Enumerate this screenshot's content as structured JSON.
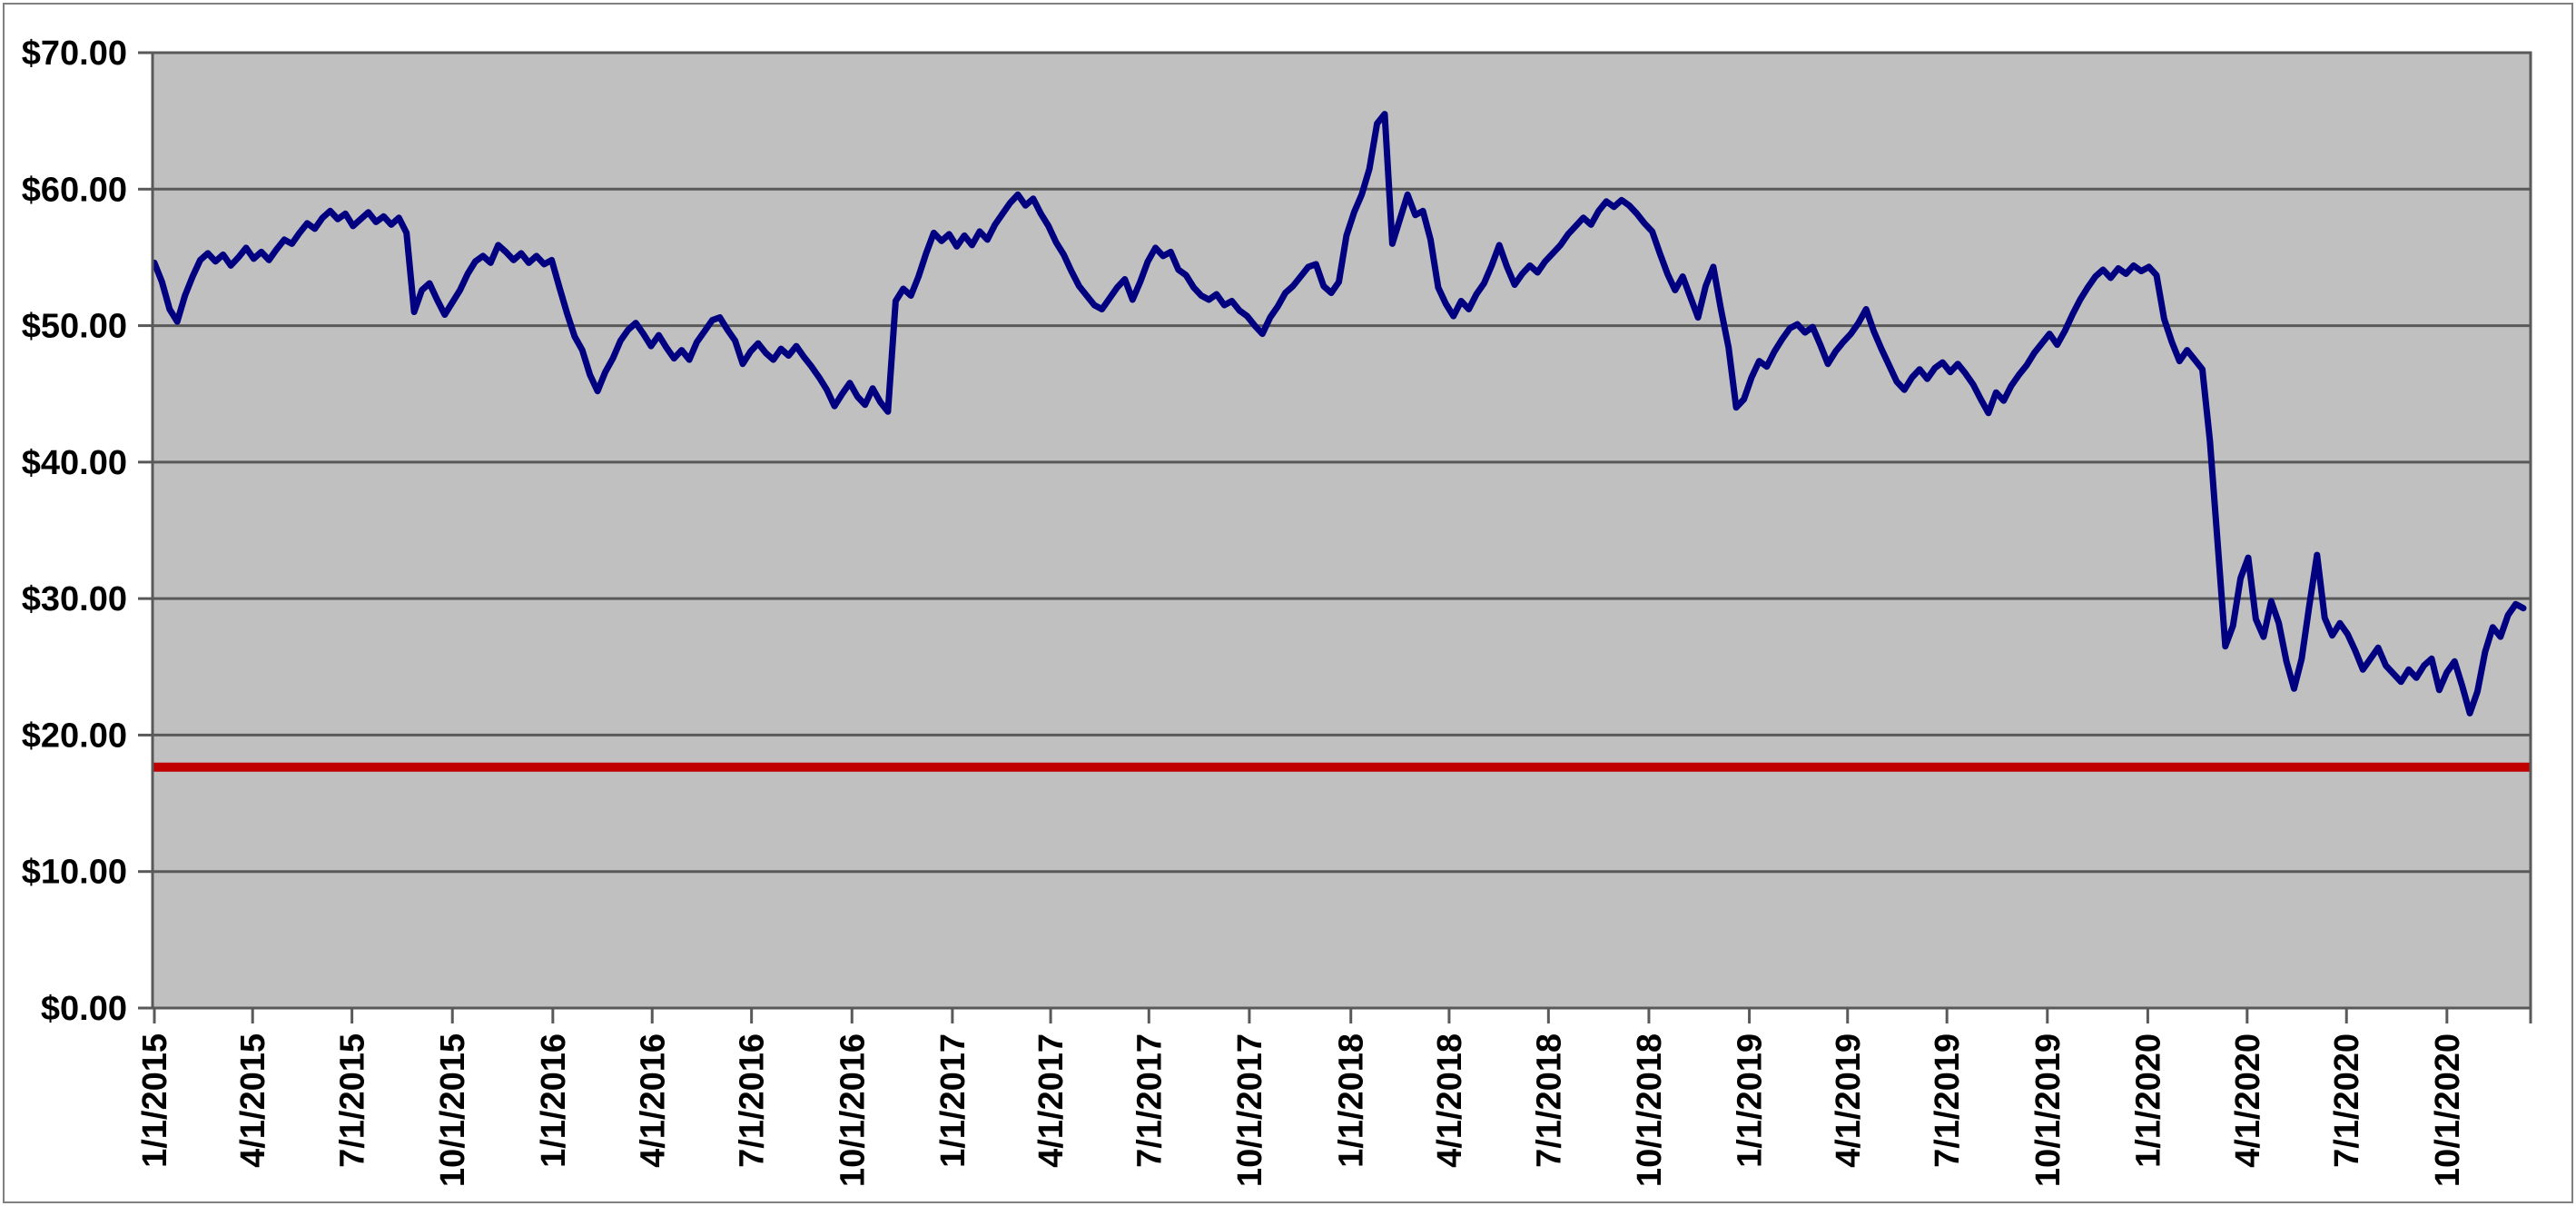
{
  "chart_data": {
    "type": "line",
    "title": "",
    "legend": "none",
    "grid": "horizontal",
    "colors": {
      "plot_background": "#C0C0C0",
      "chart_background": "#FFFFFF",
      "gridline": "#595959",
      "plot_border": "#595959",
      "chart_border": "#808080",
      "price_line": "#000080",
      "reference_line": "#C00000"
    },
    "y_axis": {
      "min": 0,
      "max": 70,
      "step": 10,
      "ticks": [
        {
          "label": "$70.00",
          "value": 70
        },
        {
          "label": "$60.00",
          "value": 60
        },
        {
          "label": "$50.00",
          "value": 50
        },
        {
          "label": "$40.00",
          "value": 40
        },
        {
          "label": "$30.00",
          "value": 30
        },
        {
          "label": "$20.00",
          "value": 20
        },
        {
          "label": "$10.00",
          "value": 10
        },
        {
          "label": "$0.00",
          "value": 0
        }
      ]
    },
    "x_axis": {
      "start_date": "1/1/2015",
      "total_days": 2170,
      "ticks": [
        {
          "label": "1/1/2015",
          "day": 0
        },
        {
          "label": "4/1/2015",
          "day": 90
        },
        {
          "label": "7/1/2015",
          "day": 181
        },
        {
          "label": "10/1/2015",
          "day": 273
        },
        {
          "label": "1/1/2016",
          "day": 365
        },
        {
          "label": "4/1/2016",
          "day": 456
        },
        {
          "label": "7/1/2016",
          "day": 547
        },
        {
          "label": "10/1/2016",
          "day": 639
        },
        {
          "label": "1/1/2017",
          "day": 731
        },
        {
          "label": "4/1/2017",
          "day": 821
        },
        {
          "label": "7/1/2017",
          "day": 911
        },
        {
          "label": "10/1/2017",
          "day": 1003
        },
        {
          "label": "1/1/2018",
          "day": 1096
        },
        {
          "label": "4/1/2018",
          "day": 1186
        },
        {
          "label": "7/1/2018",
          "day": 1277
        },
        {
          "label": "10/1/2018",
          "day": 1369
        },
        {
          "label": "1/1/2019",
          "day": 1461
        },
        {
          "label": "4/1/2019",
          "day": 1551
        },
        {
          "label": "7/1/2019",
          "day": 1642
        },
        {
          "label": "10/1/2019",
          "day": 1734
        },
        {
          "label": "1/1/2020",
          "day": 1826
        },
        {
          "label": "4/1/2020",
          "day": 1917
        },
        {
          "label": "7/1/2020",
          "day": 2008
        },
        {
          "label": "10/1/2020",
          "day": 2100
        }
      ]
    },
    "series": [
      {
        "name": "price_line",
        "type": "line",
        "color": "#000080",
        "stroke_width": 7,
        "interval_days": 7,
        "values": [
          54.6,
          53.2,
          51.2,
          50.3,
          52.2,
          53.6,
          54.8,
          55.3,
          54.7,
          55.2,
          54.4,
          55.0,
          55.7,
          54.9,
          55.4,
          54.8,
          55.6,
          56.3,
          56.0,
          56.8,
          57.5,
          57.1,
          57.9,
          58.4,
          57.8,
          58.2,
          57.3,
          57.8,
          58.3,
          57.6,
          58.0,
          57.4,
          57.9,
          56.8,
          51.0,
          52.6,
          53.1,
          51.9,
          50.8,
          51.7,
          52.6,
          53.8,
          54.7,
          55.1,
          54.6,
          55.9,
          55.4,
          54.8,
          55.3,
          54.6,
          55.1,
          54.5,
          54.8,
          52.8,
          50.9,
          49.2,
          48.2,
          46.4,
          45.2,
          46.6,
          47.6,
          48.9,
          49.7,
          50.2,
          49.4,
          48.5,
          49.3,
          48.4,
          47.6,
          48.2,
          47.5,
          48.8,
          49.6,
          50.4,
          50.6,
          49.7,
          48.9,
          47.2,
          48.1,
          48.7,
          48.0,
          47.5,
          48.3,
          47.8,
          48.5,
          47.7,
          47.0,
          46.2,
          45.3,
          44.1,
          45.0,
          45.8,
          44.8,
          44.2,
          45.4,
          44.4,
          43.7,
          51.8,
          52.7,
          52.2,
          53.6,
          55.3,
          56.8,
          56.2,
          56.7,
          55.8,
          56.6,
          55.9,
          56.9,
          56.3,
          57.4,
          58.2,
          59.0,
          59.6,
          58.8,
          59.3,
          58.2,
          57.3,
          56.1,
          55.2,
          54.0,
          52.9,
          52.2,
          51.5,
          51.2,
          52.0,
          52.8,
          53.4,
          51.9,
          53.2,
          54.7,
          55.7,
          55.1,
          55.4,
          54.1,
          53.7,
          52.8,
          52.2,
          51.9,
          52.3,
          51.5,
          51.8,
          51.1,
          50.7,
          50.0,
          49.4,
          50.6,
          51.4,
          52.4,
          52.9,
          53.6,
          54.3,
          54.5,
          52.9,
          52.4,
          53.2,
          56.6,
          58.3,
          59.6,
          61.5,
          64.8,
          65.5,
          56.0,
          57.8,
          59.6,
          58.1,
          58.4,
          56.3,
          52.8,
          51.6,
          50.7,
          51.8,
          51.2,
          52.3,
          53.1,
          54.4,
          55.9,
          54.3,
          53.0,
          53.8,
          54.4,
          53.9,
          54.7,
          55.3,
          55.9,
          56.7,
          57.3,
          57.9,
          57.4,
          58.4,
          59.1,
          58.7,
          59.2,
          58.8,
          58.2,
          57.5,
          56.9,
          55.3,
          53.8,
          52.6,
          53.6,
          52.1,
          50.6,
          52.9,
          54.3,
          51.2,
          48.4,
          44.0,
          44.6,
          46.2,
          47.4,
          47.0,
          48.1,
          49.0,
          49.8,
          50.1,
          49.5,
          49.9,
          48.6,
          47.2,
          48.1,
          48.8,
          49.4,
          50.2,
          51.2,
          49.6,
          48.3,
          47.1,
          45.9,
          45.3,
          46.2,
          46.8,
          46.1,
          46.9,
          47.3,
          46.6,
          47.2,
          46.5,
          45.7,
          44.6,
          43.6,
          45.1,
          44.5,
          45.6,
          46.4,
          47.1,
          48.0,
          48.7,
          49.4,
          48.6,
          49.6,
          50.8,
          51.9,
          52.8,
          53.6,
          54.1,
          53.5,
          54.2,
          53.8,
          54.4,
          54.0,
          54.3,
          53.7,
          50.5,
          48.8,
          47.4,
          48.2,
          47.5,
          46.8,
          41.5,
          34.0,
          26.5,
          28.0,
          31.5,
          33.0,
          28.5,
          27.2,
          29.8,
          28.2,
          25.4,
          23.4,
          25.6,
          29.5,
          33.2,
          28.6,
          27.3,
          28.2,
          27.4,
          26.2,
          24.8,
          25.6,
          26.4,
          25.1,
          24.5,
          23.9,
          24.8,
          24.2,
          25.1,
          25.6,
          23.3,
          24.6,
          25.4,
          23.6,
          21.6,
          23.2,
          26.1,
          27.9,
          27.2,
          28.8,
          29.6,
          29.3
        ]
      },
      {
        "name": "reference_line",
        "type": "constant",
        "color": "#C00000",
        "stroke_width": 10,
        "value": 17.65
      }
    ]
  }
}
